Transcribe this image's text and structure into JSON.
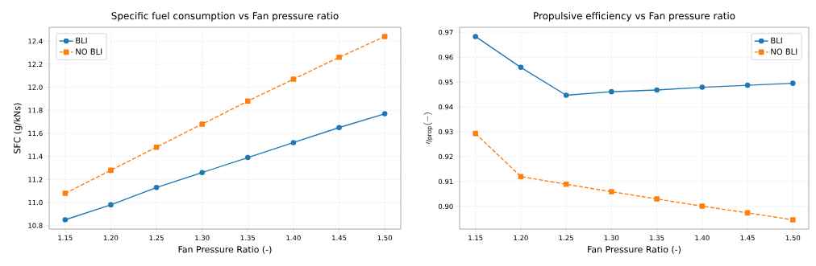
{
  "chart_data": [
    {
      "type": "line",
      "title": "Specific fuel consumption vs Fan pressure ratio",
      "xlabel": "Fan Pressure Ratio (-)",
      "ylabel": "SFC (g/kNs)",
      "x": [
        1.15,
        1.2,
        1.25,
        1.3,
        1.35,
        1.4,
        1.45,
        1.5
      ],
      "series": [
        {
          "name": "BLI",
          "color": "#1f77b4",
          "marker": "circle",
          "line_style": "solid",
          "values": [
            10.85,
            10.98,
            11.13,
            11.26,
            11.39,
            11.52,
            11.65,
            11.77
          ]
        },
        {
          "name": "NO BLI",
          "color": "#ff7f0e",
          "marker": "square",
          "line_style": "dashed",
          "values": [
            11.08,
            11.28,
            11.48,
            11.68,
            11.88,
            12.07,
            12.26,
            12.44
          ]
        }
      ],
      "xlim": [
        1.1325,
        1.5175
      ],
      "ylim": [
        10.77,
        12.52
      ],
      "xticks": [
        1.15,
        {
          "value": 1.2,
          "label": "1.20"
        },
        1.25,
        {
          "value": 1.3,
          "label": "1.30"
        },
        1.35,
        {
          "value": 1.4,
          "label": "1.40"
        },
        1.45,
        {
          "value": 1.5,
          "label": "1.50"
        }
      ],
      "yticks": [
        10.8,
        {
          "value": 11.0,
          "label": "11.0"
        },
        11.2,
        11.4,
        11.6,
        11.8,
        {
          "value": 12.0,
          "label": "12.0"
        },
        12.2,
        12.4
      ],
      "grid": true,
      "legend": "top left"
    },
    {
      "type": "line",
      "title": "Propulsive efficiency vs Fan pressure ratio",
      "xlabel": "Fan Pressure Ratio (-)",
      "ylabel": "\\eta_{\\mathrm{prop}}(-)",
      "x": [
        1.15,
        1.2,
        1.25,
        1.3,
        1.35,
        1.4,
        1.45,
        1.5
      ],
      "series": [
        {
          "name": "BLI",
          "color": "#1f77b4",
          "marker": "circle",
          "line_style": "solid",
          "values": [
            0.9683,
            0.9559,
            0.9447,
            0.9461,
            0.9468,
            0.9479,
            0.9487,
            0.9495
          ]
        },
        {
          "name": "NO BLI",
          "color": "#ff7f0e",
          "marker": "square",
          "line_style": "dashed",
          "values": [
            0.9293,
            0.912,
            0.9089,
            0.9059,
            0.903,
            0.9001,
            0.8974,
            0.8946
          ]
        }
      ],
      "xlim": [
        1.1325,
        1.5175
      ],
      "ylim": [
        0.8909,
        0.972
      ],
      "xticks": [
        1.15,
        {
          "value": 1.2,
          "label": "1.20"
        },
        1.25,
        {
          "value": 1.3,
          "label": "1.30"
        },
        1.35,
        {
          "value": 1.4,
          "label": "1.40"
        },
        1.45,
        {
          "value": 1.5,
          "label": "1.50"
        }
      ],
      "yticks": [
        {
          "value": 0.9,
          "label": "0.90"
        },
        0.91,
        0.92,
        0.93,
        0.94,
        0.95,
        0.96,
        0.97
      ],
      "grid": true,
      "legend": "top right"
    }
  ]
}
